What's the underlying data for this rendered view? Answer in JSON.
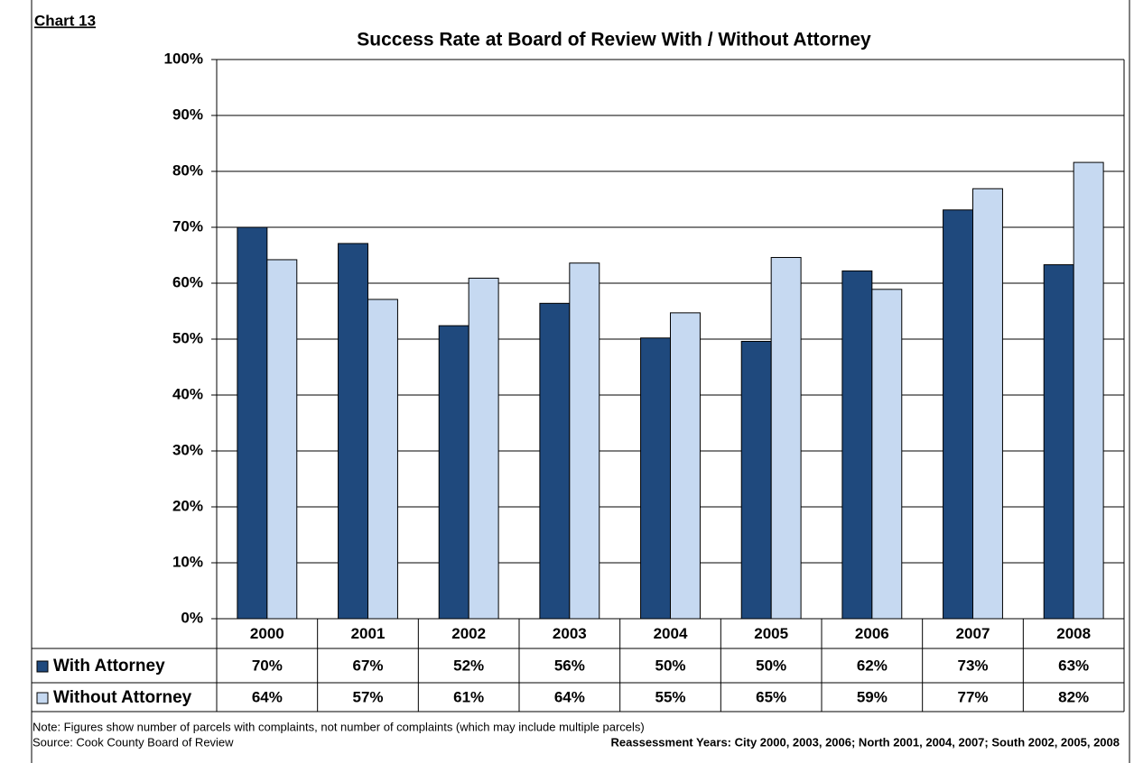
{
  "chart_data": {
    "type": "bar",
    "label": "Chart 13",
    "title": "Success Rate at Board of Review With / Without Attorney",
    "categories": [
      "2000",
      "2001",
      "2002",
      "2003",
      "2004",
      "2005",
      "2006",
      "2007",
      "2008"
    ],
    "series": [
      {
        "name": "With Attorney",
        "color": "#1f497d",
        "values": [
          70.0,
          67.1,
          52.4,
          56.4,
          50.2,
          49.6,
          62.2,
          73.1,
          63.3
        ],
        "value_labels": [
          "70%",
          "67%",
          "52%",
          "56%",
          "50%",
          "50%",
          "62%",
          "73%",
          "63%"
        ]
      },
      {
        "name": "Without Attorney",
        "color": "#c6d9f1",
        "values": [
          64.2,
          57.1,
          60.9,
          63.6,
          54.7,
          64.6,
          58.9,
          76.9,
          81.6
        ],
        "value_labels": [
          "64%",
          "57%",
          "61%",
          "64%",
          "55%",
          "65%",
          "59%",
          "77%",
          "82%"
        ]
      }
    ],
    "ylim": [
      0,
      100
    ],
    "yticks": [
      {
        "value": 0,
        "label": "0%"
      },
      {
        "value": 10,
        "label": "10%"
      },
      {
        "value": 20,
        "label": "20%"
      },
      {
        "value": 30,
        "label": "30%"
      },
      {
        "value": 40,
        "label": "40%"
      },
      {
        "value": 50,
        "label": "50%"
      },
      {
        "value": 60,
        "label": "60%"
      },
      {
        "value": 70,
        "label": "70%"
      },
      {
        "value": 80,
        "label": "80%"
      },
      {
        "value": 90,
        "label": "90%"
      },
      {
        "value": 100,
        "label": "100%"
      }
    ],
    "grid": true,
    "note": "Note: Figures show number of parcels with complaints, not number of complaints (which may include  multiple parcels)",
    "source": "Source: Cook County Board of Review",
    "reassessment": "Reassessment Years: City 2000, 2003, 2006; North 2001, 2004, 2007; South 2002, 2005, 2008"
  }
}
